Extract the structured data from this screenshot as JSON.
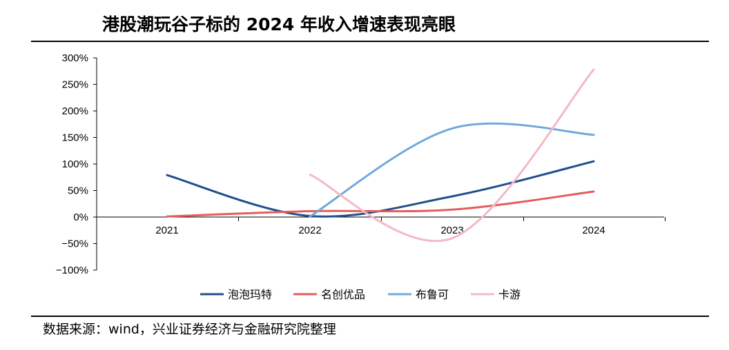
{
  "title": "港股潮玩谷子标的 2024 年收入增速表现亮眼",
  "source": "数据来源：wind，兴业证券经济与金融研究院整理",
  "chart_data": {
    "type": "line",
    "smooth": true,
    "categories": [
      "2021",
      "2022",
      "2023",
      "2024"
    ],
    "yticks": [
      "300%",
      "250%",
      "200%",
      "150%",
      "100%",
      "50%",
      "0%",
      "−50%",
      "−100%"
    ],
    "ylim": [
      -100,
      300
    ],
    "grid": false,
    "legend": "bottom",
    "series": [
      {
        "name": "泡泡玛特",
        "color": "#1f4e8c",
        "values": [
          79,
          2,
          39,
          105
        ]
      },
      {
        "name": "名创优品",
        "color": "#e55b5b",
        "values": [
          1,
          11,
          14,
          48
        ]
      },
      {
        "name": "布鲁可",
        "color": "#6fa8dc",
        "values": [
          null,
          1,
          167,
          155
        ]
      },
      {
        "name": "卡游",
        "color": "#f5b8c4",
        "values": [
          null,
          80,
          -40,
          278
        ]
      }
    ]
  }
}
